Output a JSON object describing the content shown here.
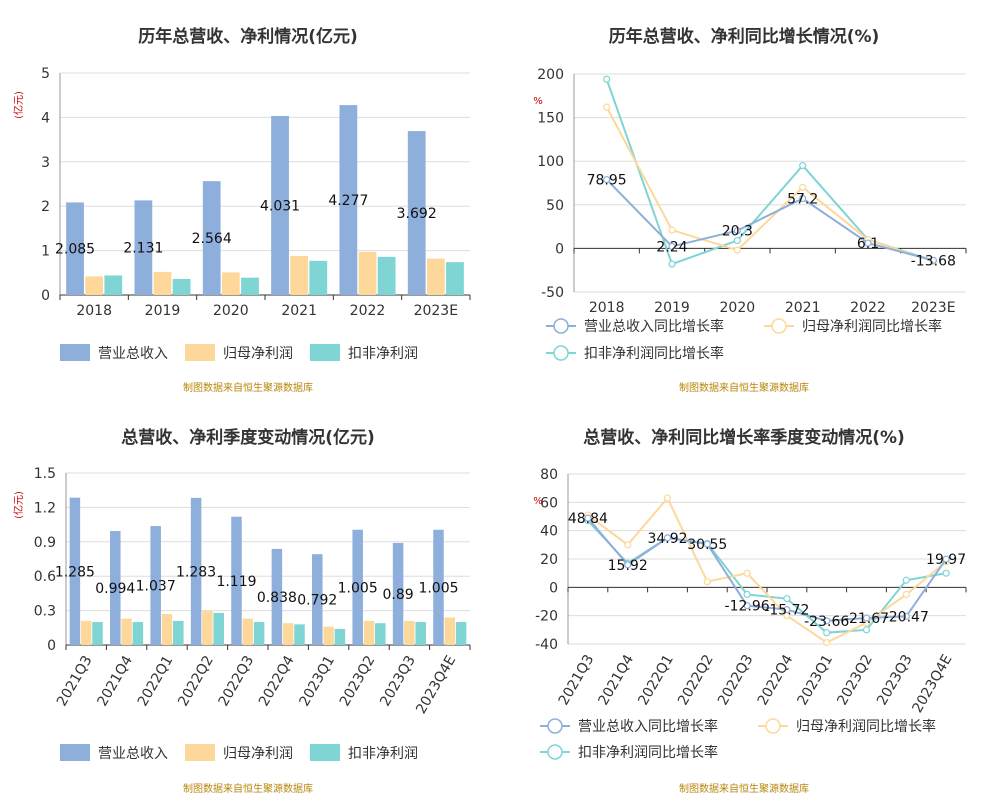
{
  "colors": {
    "revenue": "#8eaedb",
    "net_profit": "#fdd89a",
    "deducted_profit": "#7fd4d4",
    "grid": "#dddddd",
    "axis": "#333333",
    "unit": "#cc0000",
    "source": "#b8860b"
  },
  "panels": [
    {
      "title": "历年总营收、净利情况(亿元)",
      "source": "制图数据来自恒生聚源数据库"
    },
    {
      "title": "历年总营收、净利同比增长情况(%)",
      "source": "制图数据来自恒生聚源数据库"
    },
    {
      "title": "总营收、净利季度变动情况(亿元)",
      "source": "制图数据来自恒生聚源数据库"
    },
    {
      "title": "总营收、净利同比增长率季度变动情况(%)",
      "source": "制图数据来自恒生聚源数据库"
    }
  ],
  "chart_data": [
    {
      "type": "bar",
      "title": "历年总营收、净利情况(亿元)",
      "ylabel": "(亿元)",
      "ylim": [
        0,
        5
      ],
      "yticks": [
        0,
        1,
        2,
        3,
        4,
        5
      ],
      "categories": [
        "2018",
        "2019",
        "2020",
        "2021",
        "2022",
        "2023E"
      ],
      "series": [
        {
          "name": "营业总收入",
          "values": [
            2.085,
            2.131,
            2.564,
            4.031,
            4.277,
            3.692
          ],
          "labels": [
            "2.085",
            "2.131",
            "2.564",
            "4.031",
            "4.277",
            "3.692"
          ]
        },
        {
          "name": "归母净利润",
          "values": [
            0.42,
            0.52,
            0.51,
            0.88,
            0.97,
            0.82
          ]
        },
        {
          "name": "扣非净利润",
          "values": [
            0.44,
            0.36,
            0.39,
            0.77,
            0.86,
            0.74
          ]
        }
      ],
      "legend_position": "bottom",
      "grid": true
    },
    {
      "type": "line",
      "title": "历年总营收、净利同比增长情况(%)",
      "ylabel": "%",
      "ylim": [
        -50,
        200
      ],
      "yticks": [
        -50,
        0,
        50,
        100,
        150,
        200
      ],
      "categories": [
        "2018",
        "2019",
        "2020",
        "2021",
        "2022",
        "2023E"
      ],
      "series": [
        {
          "name": "营业总收入同比增长率",
          "values": [
            78.95,
            2.24,
            20.3,
            57.2,
            6.1,
            -13.68
          ],
          "labels": [
            "78.95",
            "2.24",
            "20.3",
            "57.2",
            "6.1",
            "-13.68"
          ]
        },
        {
          "name": "归母净利润同比增长率",
          "values": [
            162,
            21,
            -2,
            70,
            10,
            -15
          ]
        },
        {
          "name": "扣非净利润同比增长率",
          "values": [
            194,
            -18,
            9,
            95,
            10,
            -14
          ]
        }
      ],
      "legend_position": "bottom",
      "grid": true
    },
    {
      "type": "bar",
      "title": "总营收、净利季度变动情况(亿元)",
      "ylabel": "(亿元)",
      "ylim": [
        0,
        1.5
      ],
      "yticks": [
        "0",
        "0.3",
        "0.6",
        "0.9",
        "1.2",
        "1.5"
      ],
      "categories": [
        "2021Q3",
        "2021Q4",
        "2022Q1",
        "2022Q2",
        "2022Q3",
        "2022Q4",
        "2023Q1",
        "2023Q2",
        "2023Q3",
        "2023Q4E"
      ],
      "series": [
        {
          "name": "营业总收入",
          "values": [
            1.285,
            0.994,
            1.037,
            1.283,
            1.119,
            0.838,
            0.792,
            1.005,
            0.89,
            1.005
          ],
          "labels": [
            "1.285",
            "0.994",
            "1.037",
            "1.283",
            "1.119",
            "0.838",
            "0.792",
            "1.005",
            "0.89",
            "1.005"
          ]
        },
        {
          "name": "归母净利润",
          "values": [
            0.21,
            0.23,
            0.27,
            0.3,
            0.23,
            0.19,
            0.16,
            0.21,
            0.21,
            0.24
          ]
        },
        {
          "name": "扣非净利润",
          "values": [
            0.2,
            0.2,
            0.21,
            0.28,
            0.2,
            0.18,
            0.14,
            0.19,
            0.2,
            0.2
          ]
        }
      ],
      "legend_position": "bottom",
      "grid": true
    },
    {
      "type": "line",
      "title": "总营收、净利同比增长率季度变动情况(%)",
      "ylabel": "%",
      "ylim": [
        -40,
        80
      ],
      "yticks": [
        -40,
        -20,
        0,
        20,
        40,
        60,
        80
      ],
      "categories": [
        "2021Q3",
        "2021Q4",
        "2022Q1",
        "2022Q2",
        "2022Q3",
        "2022Q4",
        "2023Q1",
        "2023Q2",
        "2023Q3",
        "2023Q4E"
      ],
      "series": [
        {
          "name": "营业总收入同比增长率",
          "values": [
            48.84,
            15.92,
            34.92,
            30.55,
            -12.96,
            -15.72,
            -23.66,
            -21.67,
            -20.47,
            19.97
          ],
          "labels": [
            "48.84",
            "15.92",
            "34.92",
            "30.55",
            "-12.96",
            "-15.72",
            "-23.66",
            "-21.67",
            "-20.47",
            "19.97"
          ]
        },
        {
          "name": "归母净利润同比增长率",
          "values": [
            51,
            30,
            63,
            4,
            10,
            -20,
            -39,
            -25,
            -5,
            18
          ]
        },
        {
          "name": "扣非净利润同比增长率",
          "values": [
            47,
            17,
            35,
            31,
            -5,
            -8,
            -32,
            -30,
            5,
            10
          ]
        }
      ],
      "legend_position": "bottom",
      "grid": true
    }
  ]
}
